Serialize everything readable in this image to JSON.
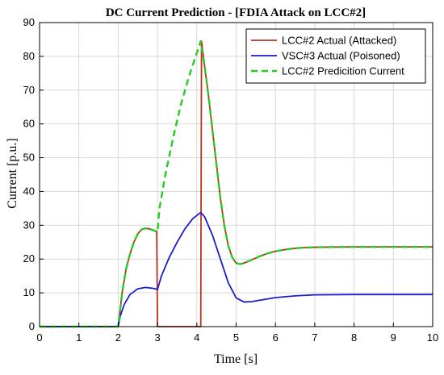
{
  "chart_data": {
    "type": "line",
    "title": "DC Current Prediction - [FDIA Attack on LCC#2]",
    "xlabel": "Time [s]",
    "ylabel": "Current [p.u.]",
    "xlim": [
      0,
      10
    ],
    "ylim": [
      0,
      90
    ],
    "xticks": [
      0,
      1,
      2,
      3,
      4,
      5,
      6,
      7,
      8,
      9,
      10
    ],
    "yticks": [
      0,
      10,
      20,
      30,
      40,
      50,
      60,
      70,
      80,
      90
    ],
    "grid": true,
    "legend_position": "top-right",
    "series": [
      {
        "name": "LCC#2 Actual (Attacked)",
        "color": "#b5341a",
        "dash": "solid",
        "points": [
          [
            0,
            0
          ],
          [
            2,
            0
          ],
          [
            2.1,
            10
          ],
          [
            2.2,
            17
          ],
          [
            2.3,
            21.5
          ],
          [
            2.4,
            25
          ],
          [
            2.5,
            27.5
          ],
          [
            2.6,
            28.8
          ],
          [
            2.7,
            29.1
          ],
          [
            2.8,
            28.9
          ],
          [
            2.9,
            28.5
          ],
          [
            2.98,
            28.2
          ],
          [
            3.0,
            0
          ],
          [
            4.1,
            0
          ],
          [
            4.12,
            84.5
          ],
          [
            4.2,
            77
          ],
          [
            4.3,
            68
          ],
          [
            4.4,
            58
          ],
          [
            4.5,
            48
          ],
          [
            4.6,
            38
          ],
          [
            4.7,
            30
          ],
          [
            4.8,
            24
          ],
          [
            4.9,
            20.5
          ],
          [
            5.0,
            18.8
          ],
          [
            5.1,
            18.5
          ],
          [
            5.2,
            18.8
          ],
          [
            5.4,
            19.8
          ],
          [
            5.6,
            20.8
          ],
          [
            5.8,
            21.7
          ],
          [
            6.0,
            22.3
          ],
          [
            6.3,
            22.9
          ],
          [
            6.6,
            23.3
          ],
          [
            7.0,
            23.5
          ],
          [
            8.0,
            23.6
          ],
          [
            9.0,
            23.6
          ],
          [
            10.0,
            23.6
          ]
        ]
      },
      {
        "name": "VSC#3 Actual (Poisoned)",
        "color": "#1c1ccf",
        "dash": "solid",
        "points": [
          [
            0,
            0
          ],
          [
            2,
            0
          ],
          [
            2.05,
            3
          ],
          [
            2.15,
            6.5
          ],
          [
            2.3,
            9.5
          ],
          [
            2.5,
            11.2
          ],
          [
            2.7,
            11.6
          ],
          [
            2.9,
            11.3
          ],
          [
            3.0,
            11
          ],
          [
            3.1,
            15
          ],
          [
            3.3,
            20.5
          ],
          [
            3.5,
            25
          ],
          [
            3.7,
            29
          ],
          [
            3.9,
            32
          ],
          [
            4.1,
            33.8
          ],
          [
            4.2,
            32.5
          ],
          [
            4.4,
            27
          ],
          [
            4.6,
            20
          ],
          [
            4.8,
            13
          ],
          [
            5.0,
            8.5
          ],
          [
            5.2,
            7.3
          ],
          [
            5.4,
            7.4
          ],
          [
            5.7,
            8.0
          ],
          [
            6.0,
            8.6
          ],
          [
            6.5,
            9.1
          ],
          [
            7.0,
            9.4
          ],
          [
            8.0,
            9.5
          ],
          [
            9.0,
            9.5
          ],
          [
            10.0,
            9.5
          ]
        ]
      },
      {
        "name": "LCC#2 Predicition Current",
        "color": "#22cc22",
        "dash": "dashed",
        "points": [
          [
            0,
            0
          ],
          [
            2,
            0
          ],
          [
            2.1,
            10
          ],
          [
            2.2,
            17
          ],
          [
            2.3,
            21.5
          ],
          [
            2.4,
            25
          ],
          [
            2.5,
            27.5
          ],
          [
            2.6,
            28.8
          ],
          [
            2.7,
            29.1
          ],
          [
            2.8,
            28.9
          ],
          [
            2.9,
            28.5
          ],
          [
            3.0,
            28
          ],
          [
            3.05,
            35
          ],
          [
            3.2,
            45
          ],
          [
            3.4,
            56
          ],
          [
            3.6,
            66
          ],
          [
            3.8,
            74
          ],
          [
            4.0,
            81
          ],
          [
            4.1,
            84.5
          ],
          [
            4.2,
            77
          ],
          [
            4.3,
            68
          ],
          [
            4.4,
            58
          ],
          [
            4.5,
            48
          ],
          [
            4.6,
            38
          ],
          [
            4.7,
            30
          ],
          [
            4.8,
            24
          ],
          [
            4.9,
            20.5
          ],
          [
            5.0,
            18.8
          ],
          [
            5.1,
            18.5
          ],
          [
            5.2,
            18.8
          ],
          [
            5.4,
            19.8
          ],
          [
            5.6,
            20.8
          ],
          [
            5.8,
            21.7
          ],
          [
            6.0,
            22.3
          ],
          [
            6.3,
            22.9
          ],
          [
            6.6,
            23.3
          ],
          [
            7.0,
            23.5
          ],
          [
            8.0,
            23.6
          ],
          [
            9.0,
            23.6
          ],
          [
            10.0,
            23.6
          ]
        ]
      }
    ]
  }
}
